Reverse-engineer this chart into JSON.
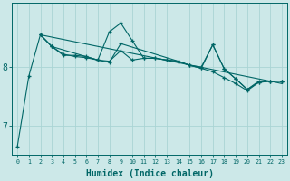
{
  "xlabel": "Humidex (Indice chaleur)",
  "bg_color": "#cce8e8",
  "line_color": "#006666",
  "grid_color": "#aad4d4",
  "yticks": [
    7,
    8
  ],
  "xticks": [
    0,
    1,
    2,
    3,
    4,
    5,
    6,
    7,
    8,
    9,
    10,
    11,
    12,
    13,
    14,
    15,
    16,
    17,
    18,
    19,
    20,
    21,
    22,
    23
  ],
  "ylim": [
    6.5,
    9.1
  ],
  "xlim": [
    -0.5,
    23.5
  ],
  "series1_x": [
    0,
    1,
    2,
    3,
    4,
    5,
    6,
    7,
    8,
    9,
    10,
    11,
    12,
    13,
    14,
    15,
    16,
    17,
    18,
    19,
    20,
    21,
    22,
    23
  ],
  "series1_y": [
    6.65,
    7.85,
    8.55,
    8.35,
    8.2,
    8.2,
    8.18,
    8.12,
    8.1,
    8.28,
    8.12,
    8.15,
    8.15,
    8.12,
    8.1,
    8.03,
    8.0,
    8.38,
    7.97,
    7.8,
    7.62,
    7.76,
    7.76,
    7.76
  ],
  "series2_x": [
    2,
    3,
    4,
    5,
    6,
    7,
    8,
    9,
    10,
    11,
    12,
    13,
    14,
    15,
    16,
    17,
    18,
    19,
    20,
    21,
    22,
    23
  ],
  "series2_y": [
    8.55,
    8.35,
    8.22,
    8.18,
    8.16,
    8.12,
    8.6,
    8.75,
    8.45,
    8.15,
    8.15,
    8.12,
    8.1,
    8.03,
    7.98,
    7.92,
    7.82,
    7.72,
    7.6,
    7.74,
    7.76,
    7.76
  ],
  "series3_x": [
    2,
    3,
    7,
    8,
    9,
    14,
    15,
    16,
    17,
    18,
    19,
    20,
    21,
    22,
    23
  ],
  "series3_y": [
    8.55,
    8.35,
    8.12,
    8.08,
    8.4,
    8.1,
    8.03,
    7.98,
    8.38,
    7.97,
    7.8,
    7.62,
    7.74,
    7.76,
    7.76
  ],
  "trend_x": [
    2,
    23
  ],
  "trend_y": [
    8.55,
    7.72
  ]
}
